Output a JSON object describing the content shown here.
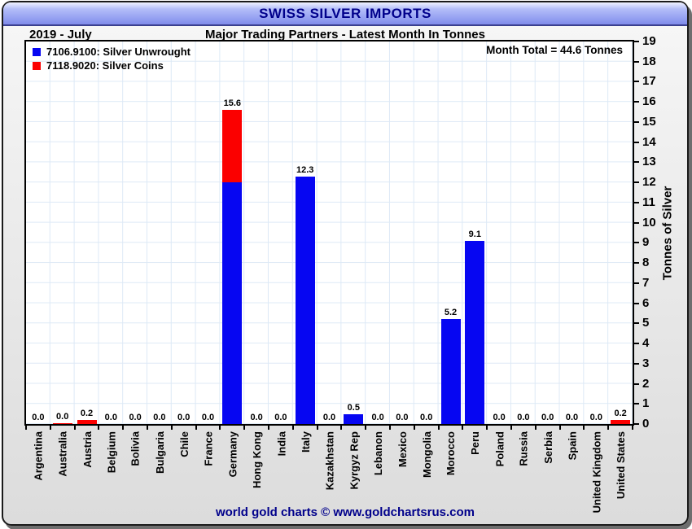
{
  "window": {
    "title": "SWISS SILVER IMPORTS",
    "period": "2019 - July",
    "subtitle": "Major Trading Partners - Latest Month In Tonnes",
    "footer": "world gold charts © www.goldchartsrus.com"
  },
  "chart_data": {
    "type": "bar",
    "stacked": true,
    "annotation": "Month Total = 44.6 Tonnes",
    "categories": [
      "Argentina",
      "Australia",
      "Austria",
      "Belgium",
      "Bolivia",
      "Bulgaria",
      "Chile",
      "France",
      "Germany",
      "Hong Kong",
      "India",
      "Italy",
      "Kazakhstan",
      "Kyrgyz Rep",
      "Lebanon",
      "Mexico",
      "Mongolia",
      "Morocco",
      "Peru",
      "Poland",
      "Russia",
      "Serbia",
      "Spain",
      "United Kingdom",
      "United States"
    ],
    "series": [
      {
        "name": "7106.9100: Silver Unwrought",
        "color": "#0606f2",
        "values": [
          0,
          0,
          0,
          0,
          0,
          0,
          0,
          0,
          12.0,
          0,
          0,
          12.3,
          0,
          0.5,
          0,
          0,
          0,
          5.2,
          9.1,
          0,
          0,
          0,
          0,
          0,
          0
        ]
      },
      {
        "name": "7118.9020: Silver Coins",
        "color": "#fb0000",
        "values": [
          0,
          0.05,
          0.2,
          0,
          0,
          0,
          0,
          0,
          3.6,
          0,
          0,
          0,
          0,
          0,
          0,
          0,
          0,
          0,
          0,
          0,
          0,
          0,
          0,
          0,
          0.2
        ]
      }
    ],
    "bar_labels": [
      "0.0",
      "0.0",
      "0.2",
      "0.0",
      "0.0",
      "0.0",
      "0.0",
      "0.0",
      "15.6",
      "0.0",
      "0.0",
      "12.3",
      "0.0",
      "0.5",
      "0.0",
      "0.0",
      "0.0",
      "5.2",
      "9.1",
      "0.0",
      "0.0",
      "0.0",
      "0.0",
      "0.0",
      "0.2"
    ],
    "ylabel": "Tonnes of Silver",
    "ylim": [
      0,
      19
    ],
    "ytick_step": 1,
    "legend_position": "top-left",
    "grid": true
  },
  "colors": {
    "accent_navy": "#00008B",
    "bar_blue": "#0606f2",
    "bar_red": "#fb0000",
    "gridline": "#dde9f6"
  }
}
